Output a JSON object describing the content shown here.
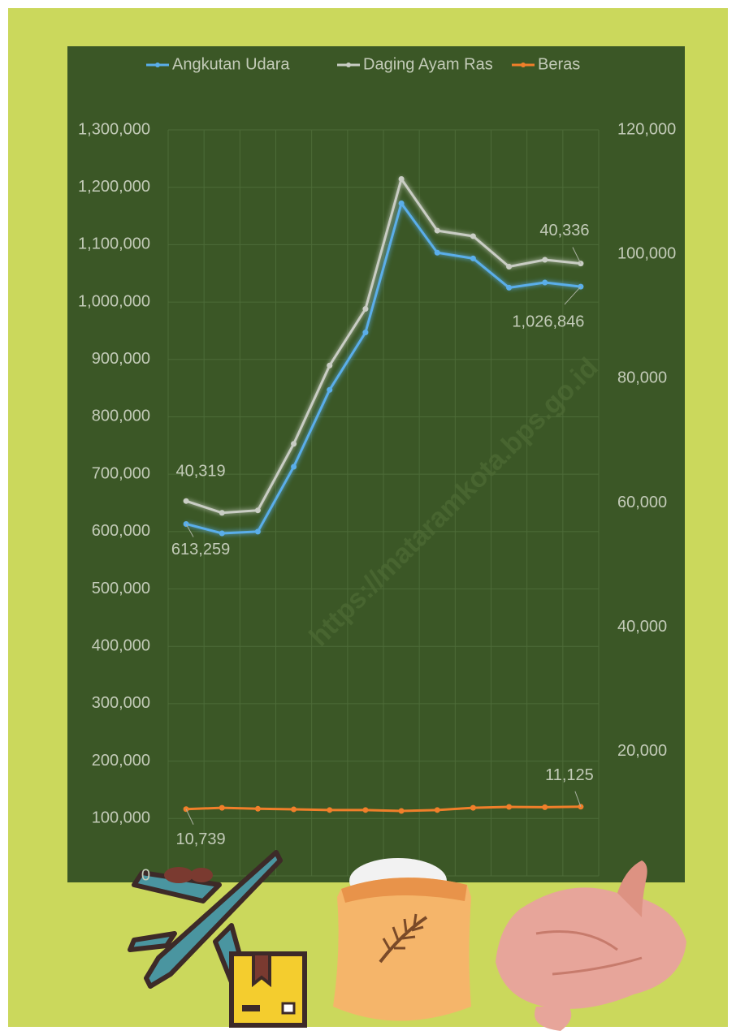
{
  "chart_data": {
    "type": "line",
    "legend": "top",
    "grid": true,
    "categories": [
      null,
      null,
      null,
      null,
      null,
      null,
      null,
      null,
      null,
      null,
      null,
      null
    ],
    "series": [
      {
        "name": "Angkutan Udara",
        "color": "#5aaeea",
        "axis": "y",
        "values": [
          613259,
          597000,
          600000,
          713000,
          847000,
          947000,
          1172000,
          1086000,
          1076000,
          1025000,
          1034000,
          1026846
        ],
        "value_labels": [
          "613,259",
          null,
          null,
          null,
          null,
          null,
          null,
          null,
          null,
          null,
          null,
          "1,026,846"
        ]
      },
      {
        "name": "Daging Ayam Ras",
        "color": "#c9cdc4",
        "axis": "y2",
        "values": [
          60300,
          58400,
          58800,
          69500,
          82100,
          91200,
          112100,
          103800,
          102900,
          98000,
          99100,
          98500
        ]
      },
      {
        "name": "Beras",
        "color": "#f07f2a",
        "axis": "y2",
        "values": [
          10739,
          10950,
          10800,
          10700,
          10600,
          10600,
          10450,
          10600,
          10950,
          11100,
          11050,
          11125
        ],
        "value_labels": [
          "10,739",
          null,
          null,
          null,
          null,
          null,
          null,
          null,
          null,
          null,
          null,
          "11,125"
        ]
      }
    ],
    "annotations": [
      "40,319",
      "40,336"
    ],
    "ylim": [
      0,
      1300000
    ],
    "yticks": [
      0,
      {
        "value": 100000,
        "label": "100,000"
      },
      {
        "value": 200000,
        "label": "200,000"
      },
      {
        "value": 300000,
        "label": "300,000"
      },
      {
        "value": 400000,
        "label": "400,000"
      },
      {
        "value": 500000,
        "label": "500,000"
      },
      {
        "value": 600000,
        "label": "600,000"
      },
      {
        "value": 700000,
        "label": "700,000"
      },
      {
        "value": 800000,
        "label": "800,000"
      },
      {
        "value": 900000,
        "label": "900,000"
      },
      {
        "value": 1000000,
        "label": "1,000,000"
      },
      {
        "value": 1100000,
        "label": "1,100,000"
      },
      {
        "value": 1200000,
        "label": "1,200,000"
      },
      {
        "value": 1300000,
        "label": "1,300,000"
      }
    ],
    "y2lim": [
      0,
      120000
    ],
    "y2ticks": [
      {
        "value": 20000,
        "label": "20,000"
      },
      {
        "value": 40000,
        "label": "40,000"
      },
      {
        "value": 60000,
        "label": "60,000"
      },
      {
        "value": 80000,
        "label": "80,000"
      },
      {
        "value": 100000,
        "label": "100,000"
      },
      {
        "value": 120000,
        "label": "120,000"
      }
    ],
    "watermark": "https://mataramkota.bps.go.id"
  }
}
